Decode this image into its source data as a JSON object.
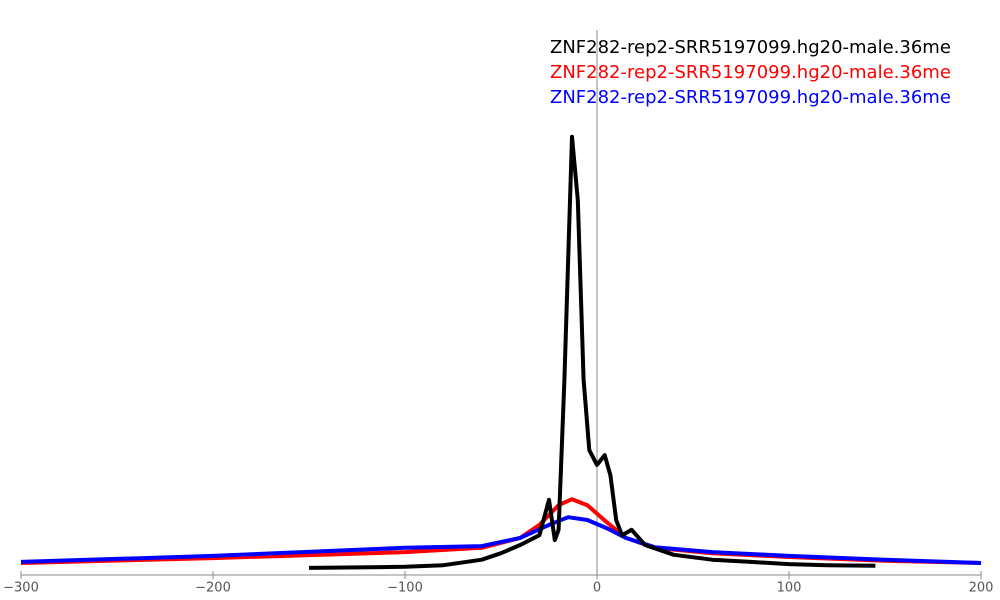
{
  "chart_data": {
    "type": "line",
    "xlim": [
      -300,
      200
    ],
    "xticks": [
      {
        "value": -300,
        "label": "−300"
      },
      {
        "value": -200,
        "label": "−200"
      },
      {
        "value": -100,
        "label": "−100"
      },
      0,
      100,
      200
    ],
    "ylim": [
      0,
      100
    ],
    "vline": 0,
    "series": [
      {
        "name": "ZNF282-rep2-SRR5197099.hg20-male.36me",
        "color": "#000000",
        "x": [
          -150,
          -100,
          -80,
          -60,
          -50,
          -40,
          -30,
          -25,
          -22,
          -20,
          -17,
          -13,
          -10,
          -7,
          -4,
          0,
          4,
          7,
          10,
          13,
          18,
          25,
          40,
          60,
          80,
          100,
          120,
          145
        ],
        "values": [
          1.3,
          1.5,
          1.8,
          2.8,
          4,
          5.5,
          7.3,
          13.8,
          6.4,
          8.3,
          35.8,
          80.4,
          68.8,
          35.8,
          22.9,
          20.2,
          22,
          18.3,
          10.1,
          7.3,
          8.3,
          5.5,
          3.7,
          2.8,
          2.4,
          2,
          1.8,
          1.7
        ]
      },
      {
        "name": "ZNF282-rep2-SRR5197099.hg20-male.36me",
        "color": "#ff0000",
        "x": [
          -300,
          -200,
          -100,
          -60,
          -40,
          -30,
          -20,
          -13,
          -5,
          5,
          15,
          30,
          60,
          100,
          150,
          200
        ],
        "values": [
          2.2,
          3.1,
          4.2,
          5,
          6.8,
          9.2,
          12.8,
          13.9,
          12.8,
          9.7,
          6.8,
          5,
          4,
          3.3,
          2.6,
          2.2
        ]
      },
      {
        "name": "ZNF282-rep2-SRR5197099.hg20-male.36me",
        "color": "#0000ff",
        "x": [
          -300,
          -200,
          -100,
          -60,
          -40,
          -25,
          -15,
          -5,
          5,
          15,
          30,
          60,
          100,
          150,
          200
        ],
        "values": [
          2.4,
          3.5,
          5,
          5.3,
          6.8,
          9.2,
          10.6,
          10.1,
          8.6,
          6.8,
          5.1,
          4.2,
          3.5,
          2.8,
          2.2
        ]
      }
    ]
  }
}
